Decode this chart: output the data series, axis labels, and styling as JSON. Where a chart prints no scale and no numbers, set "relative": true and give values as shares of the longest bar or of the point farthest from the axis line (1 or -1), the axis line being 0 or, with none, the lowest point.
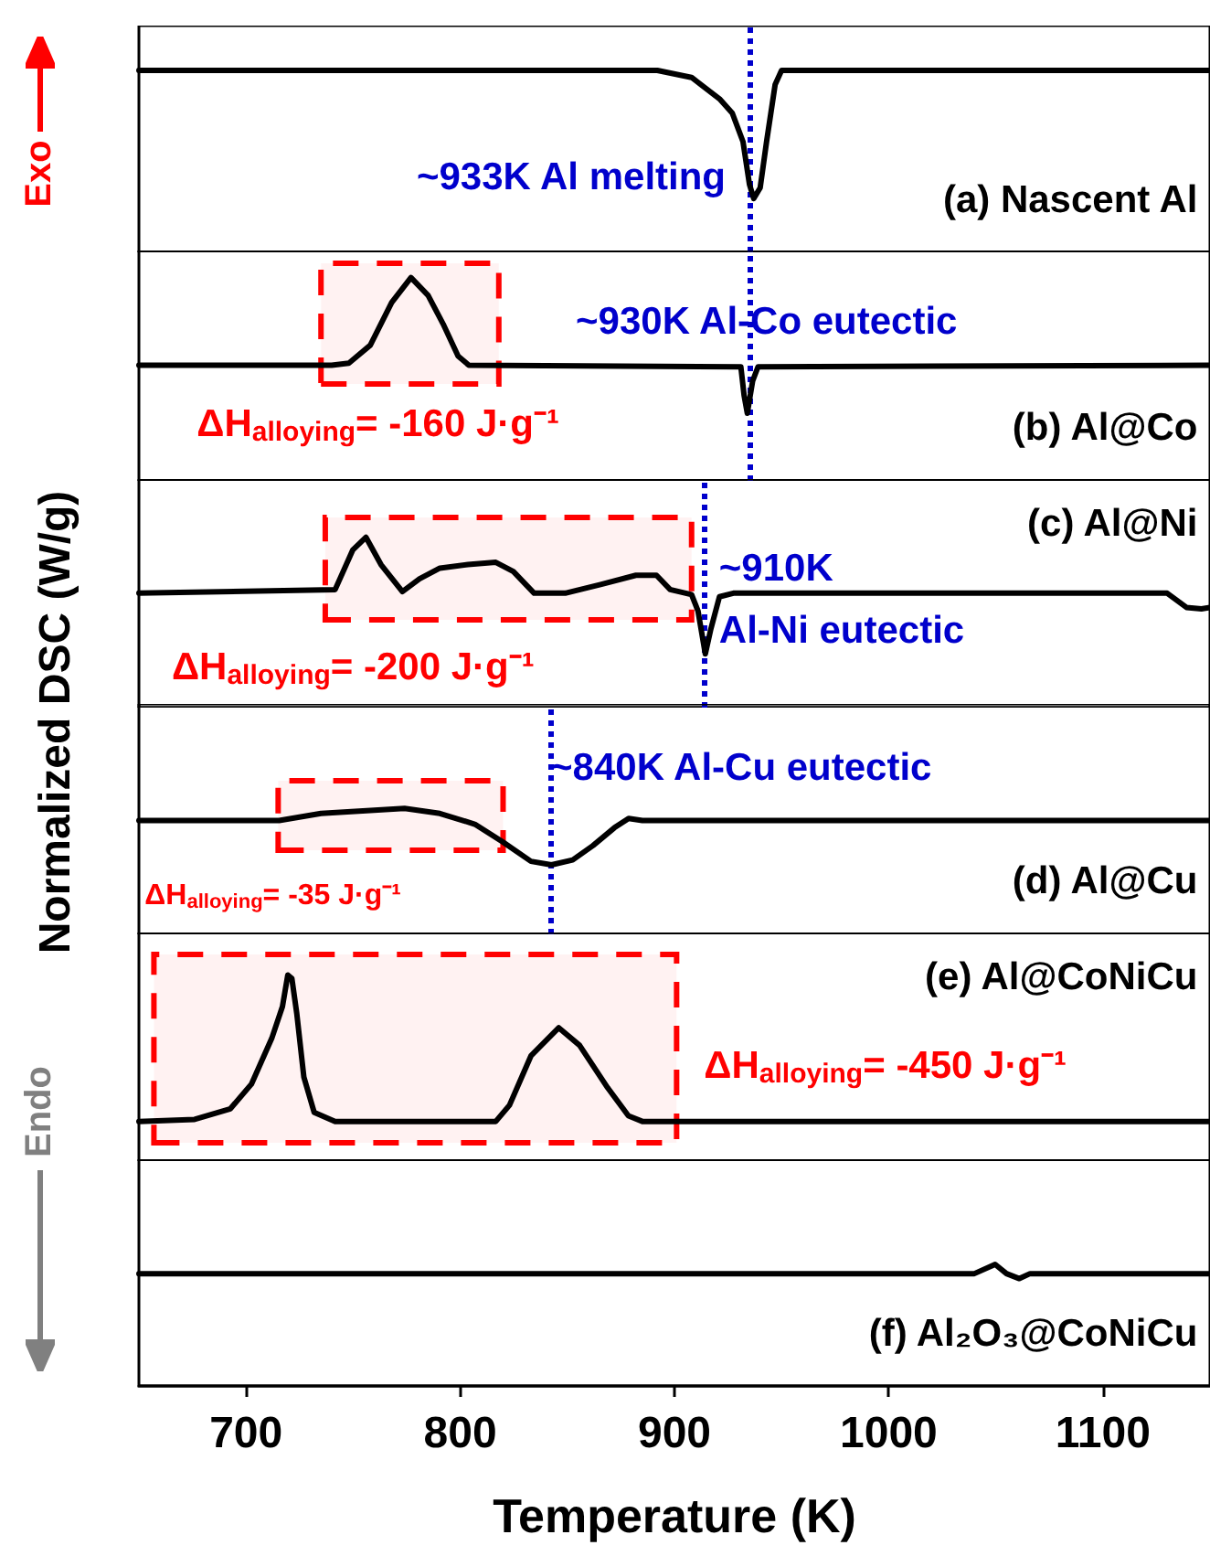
{
  "chart_data": [
    {
      "type": "line",
      "title": "(a) Nascent Al",
      "annotations": [
        "Exo"
      ],
      "relative": true,
      "marker": "none",
      "line_style": "solid",
      "tick_labels": false,
      "xlim": [
        650,
        1150
      ],
      "x": [
        650,
        892,
        908,
        921,
        927,
        932,
        935,
        937,
        940,
        943,
        947,
        950,
        1150
      ],
      "series": [
        {
          "color": "#000000",
          "values": [
            1,
            1,
            0.961,
            0.844,
            0.765,
            0.608,
            0.374,
            0.296,
            0.354,
            0.608,
            0.922,
            1,
            1
          ]
        }
      ],
      "ref_lines": [
        {
          "axis": "x",
          "value": 935,
          "label": "~933K Al melting",
          "color": "#0000cc",
          "line_style": "dotted"
        }
      ]
    },
    {
      "type": "line",
      "title": "(b) Al@Co",
      "relative": true,
      "marker": "none",
      "line_style": "solid",
      "tick_labels": false,
      "xlim": [
        650,
        1150
      ],
      "x": [
        650,
        740,
        748,
        758,
        768,
        777,
        785,
        792,
        799,
        804,
        931,
        932.5,
        934,
        936.5,
        939,
        1150
      ],
      "series": [
        {
          "color": "#000000",
          "values": [
            0.569,
            0.569,
            0.579,
            0.667,
            0.877,
            1,
            0.912,
            0.772,
            0.614,
            0.569,
            0.561,
            0.421,
            0.333,
            0.491,
            0.561,
            0.569
          ]
        }
      ],
      "ref_lines": [
        {
          "axis": "x",
          "value": 935,
          "label": "~930K Al-Co eutectic",
          "color": "#0000cc",
          "line_style": "dotted"
        }
      ],
      "bands": [
        {
          "axis": "x",
          "from": 735,
          "to": 818,
          "label": "ΔH$_{alloying}$= -160 J·g⁻¹",
          "color": "#ff0000"
        }
      ]
    },
    {
      "type": "line",
      "title": "(c) Al@Ni",
      "relative": true,
      "marker": "none",
      "line_style": "solid",
      "tick_labels": false,
      "xlim": [
        650,
        1150
      ],
      "x": [
        650,
        741.6,
        749.8,
        756,
        763,
        773,
        781,
        790.5,
        803.6,
        816.6,
        824.8,
        834.5,
        849,
        865.5,
        882,
        891.6,
        898,
        908,
        911,
        914.4,
        917,
        921,
        927.5,
        1130,
        1139,
        1146,
        1150
      ],
      "series": [
        {
          "color": "#000000",
          "values": [
            0.672,
            0.693,
            0.925,
            1,
            0.84,
            0.681,
            0.756,
            0.819,
            0.84,
            0.853,
            0.799,
            0.672,
            0.672,
            0.723,
            0.777,
            0.777,
            0.693,
            0.664,
            0.567,
            0.315,
            0.462,
            0.651,
            0.672,
            0.672,
            0.588,
            0.58,
            0.588
          ]
        }
      ],
      "ref_lines": [
        {
          "axis": "x",
          "value": 914,
          "label": "~910K\nAl-Ni eutectic",
          "color": "#0000cc",
          "line_style": "dotted"
        }
      ],
      "bands": [
        {
          "axis": "x",
          "from": 737,
          "to": 908,
          "label": "ΔH$_{alloying}$= -200 J·g⁻¹",
          "color": "#ff0000"
        }
      ]
    },
    {
      "type": "line",
      "title": "(d) Al@Cu",
      "ylabel": "Normalized DSC (W/g)",
      "relative": true,
      "marker": "none",
      "line_style": "solid",
      "tick_labels": false,
      "xlim": [
        650,
        1150
      ],
      "x": [
        650,
        715.5,
        735,
        774,
        790.5,
        806.8,
        819.9,
        833,
        842.6,
        852.5,
        862,
        872,
        878.6,
        885,
        1150
      ],
      "series": [
        {
          "color": "#000000",
          "values": [
            0.904,
            0.904,
            0.96,
            1,
            0.96,
            0.875,
            0.733,
            0.58,
            0.552,
            0.591,
            0.705,
            0.847,
            0.921,
            0.904,
            0.904
          ]
        }
      ],
      "ref_lines": [
        {
          "axis": "x",
          "value": 842,
          "label": "~840K Al-Cu eutectic",
          "color": "#0000cc",
          "line_style": "dotted"
        }
      ],
      "bands": [
        {
          "axis": "x",
          "from": 715,
          "to": 820,
          "label": "ΔH$_{alloying}$= -35 J·g⁻¹",
          "color": "#ff0000"
        }
      ]
    },
    {
      "type": "line",
      "title": "(e) Al@CoNiCu",
      "annotations": [
        "Endo"
      ],
      "relative": true,
      "marker": "none",
      "line_style": "solid",
      "tick_labels": false,
      "xlim": [
        650,
        1150
      ],
      "x": [
        650,
        676,
        692.7,
        702.5,
        712,
        717,
        719.5,
        721.4,
        723.7,
        727,
        731.8,
        741.6,
        816.6,
        823,
        833,
        846,
        855.7,
        868.8,
        878.5,
        885,
        1150
      ],
      "series": [
        {
          "color": "#000000",
          "values": [
            0.213,
            0.224,
            0.281,
            0.413,
            0.659,
            0.83,
            1,
            0.981,
            0.792,
            0.451,
            0.262,
            0.213,
            0.213,
            0.3,
            0.565,
            0.716,
            0.622,
            0.394,
            0.243,
            0.213,
            0.213
          ]
        }
      ],
      "bands": [
        {
          "axis": "x",
          "from": 657,
          "to": 901,
          "label": "ΔH$_{alloying}$= -450 J·g⁻¹",
          "color": "#ff0000"
        }
      ]
    },
    {
      "type": "line",
      "title": "(f) Al₂O₃@CoNiCu",
      "xlabel": "Temperature (K)",
      "relative": true,
      "marker": "none",
      "line_style": "solid",
      "tick_labels": "x",
      "xlim": [
        650,
        1150
      ],
      "xticks": [
        700,
        800,
        900,
        1000,
        1100
      ],
      "x": [
        650,
        1040,
        1049.7,
        1055,
        1061,
        1066,
        1150
      ],
      "series": [
        {
          "color": "#000000",
          "values": [
            0.924,
            0.924,
            1,
            0.924,
            0.883,
            0.924,
            0.924
          ]
        }
      ]
    }
  ]
}
